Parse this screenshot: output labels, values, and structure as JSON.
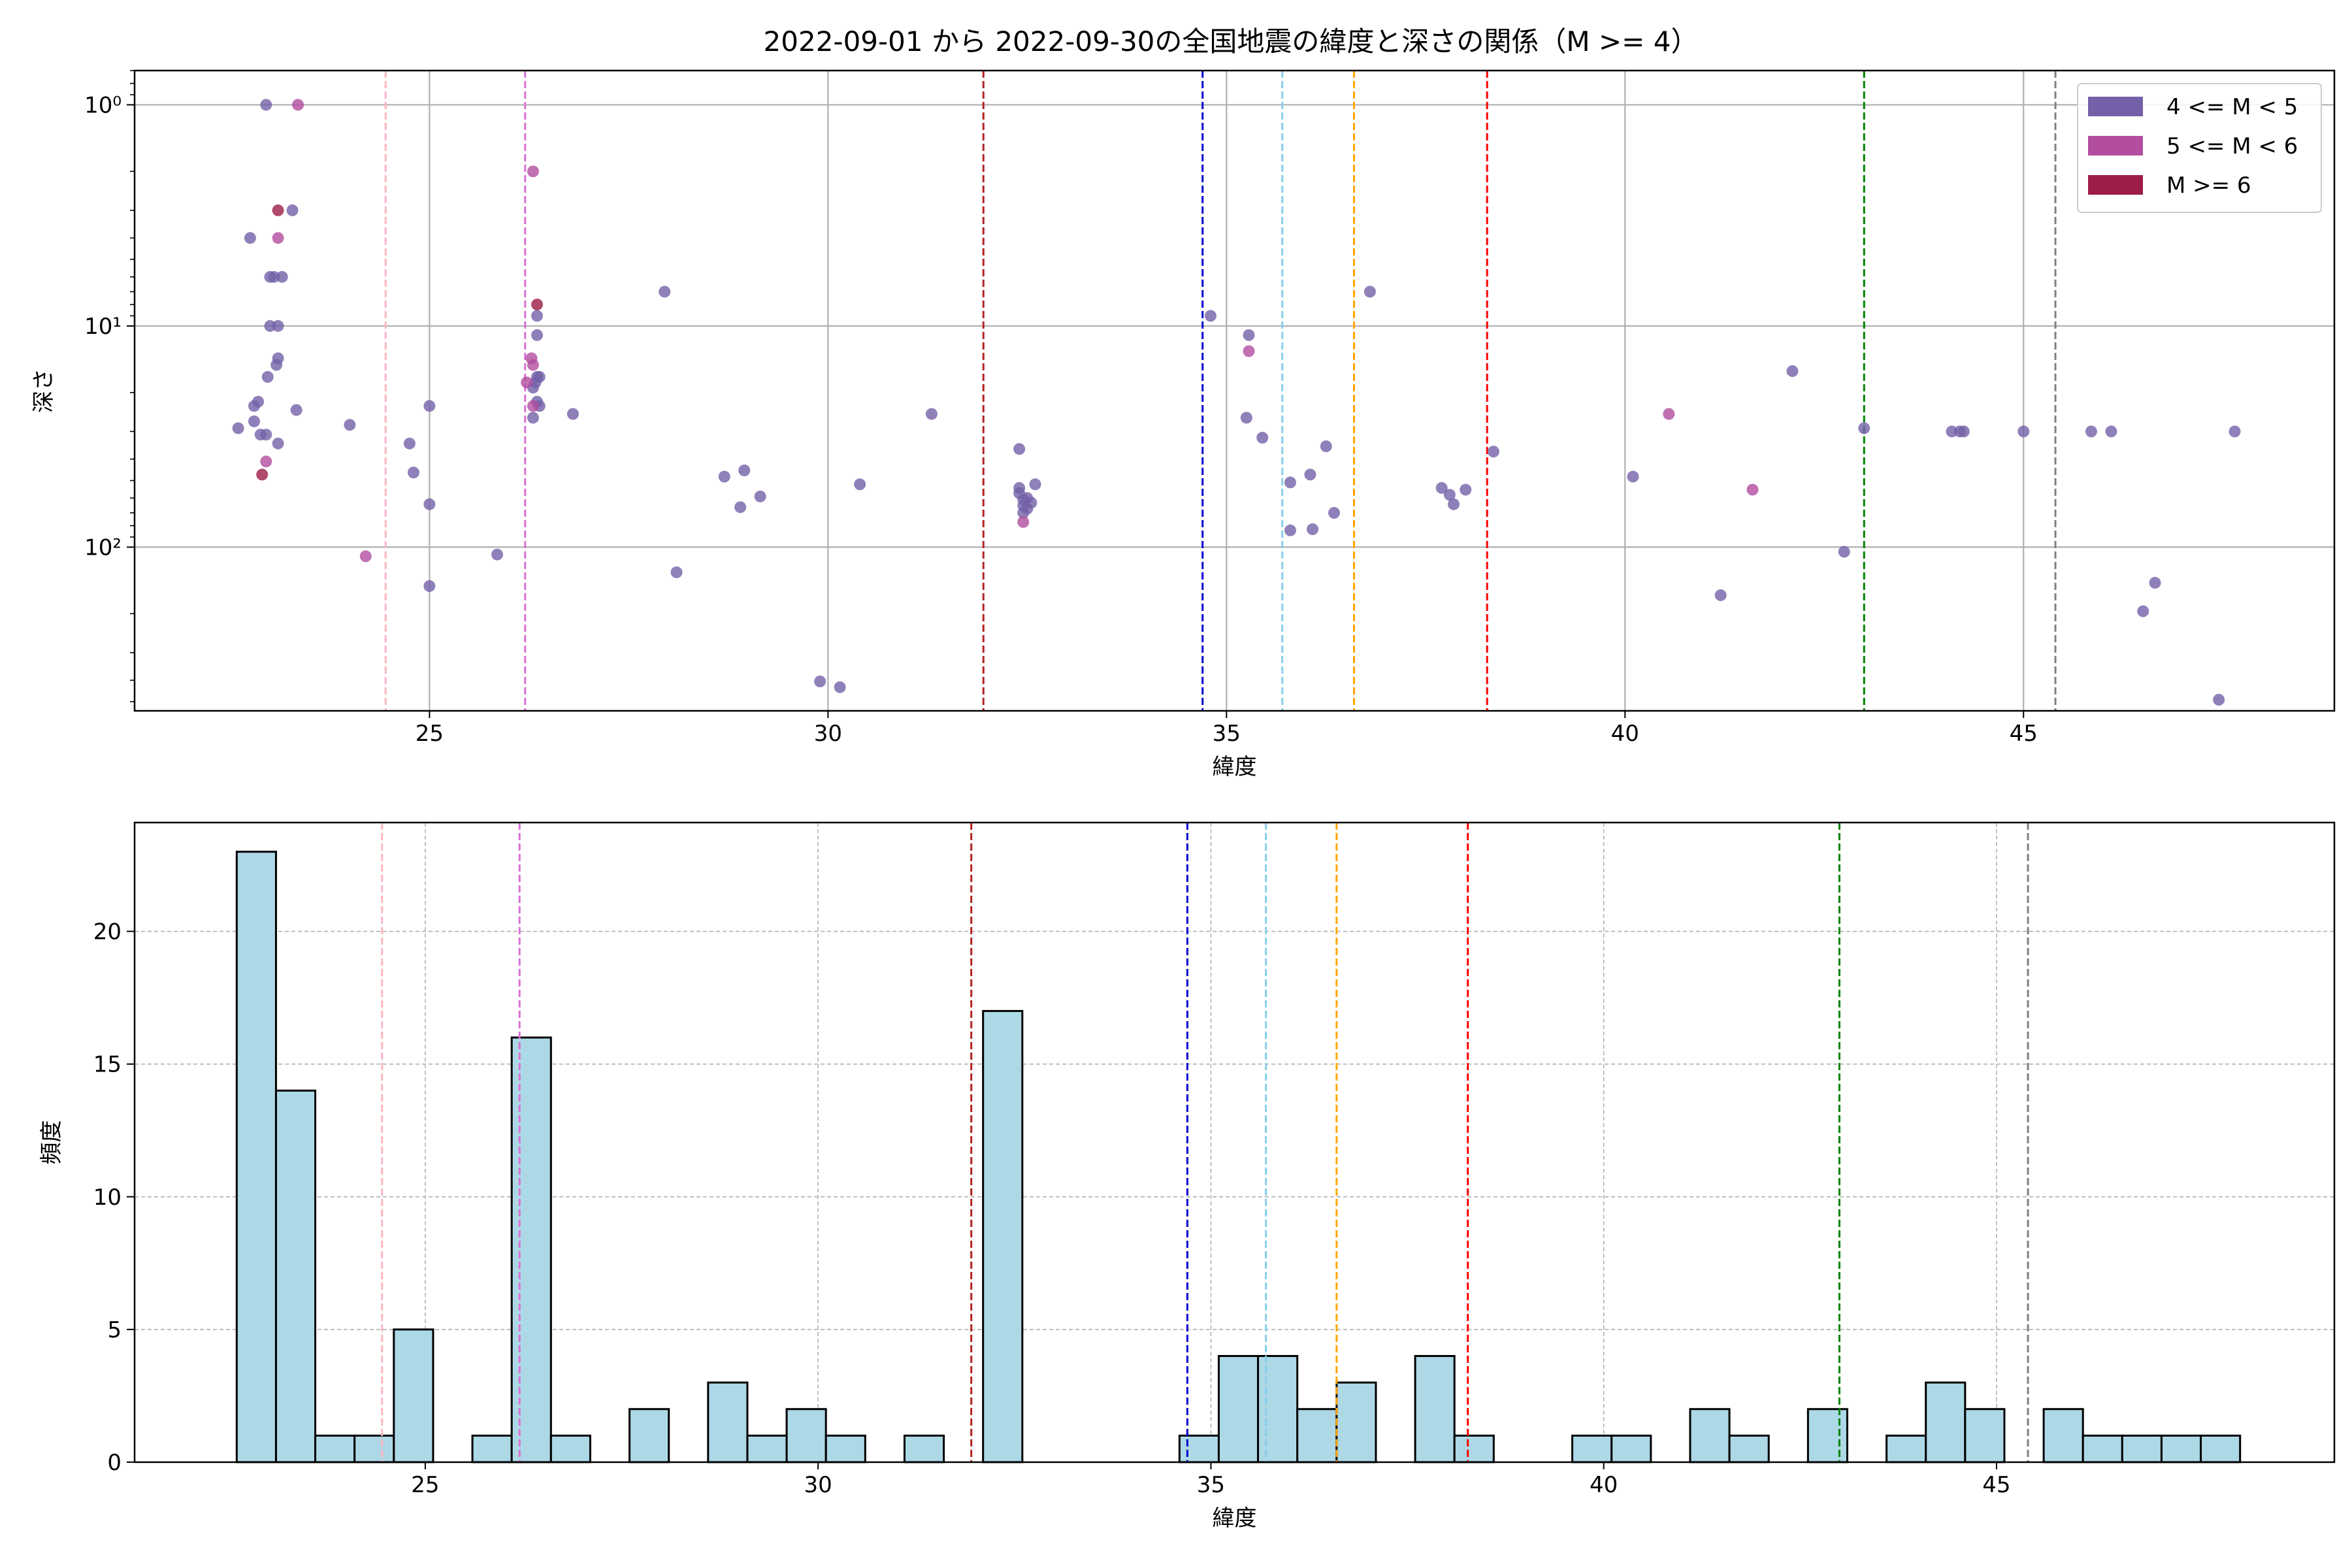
{
  "chart_data": [
    {
      "type": "scatter",
      "title": "2022-09-01 から 2022-09-30の全国地震の緯度と深さの関係（M >= 4）",
      "xlabel": "緯度",
      "ylabel": "深さ",
      "xlim": [
        21.3,
        48.9
      ],
      "ylim": [
        550,
        0.7
      ],
      "yscale": "log",
      "y_inverted": true,
      "grid": true,
      "legend_position": "top-right",
      "x_ticks": [
        25,
        30,
        35,
        40,
        45
      ],
      "y_ticks": [
        1,
        10,
        100
      ],
      "y_tick_labels": [
        "10⁰",
        "10¹",
        "10²"
      ],
      "colors": {
        "m4": "#7360a8",
        "m5": "#b24d9f",
        "m6": "#9c1d45"
      },
      "vlines": [
        {
          "x": 24.45,
          "color": "#ffb6c1"
        },
        {
          "x": 26.2,
          "color": "#da70d6"
        },
        {
          "x": 31.95,
          "color": "#b22222"
        },
        {
          "x": 34.7,
          "color": "#0000cd"
        },
        {
          "x": 35.7,
          "color": "#87ceeb"
        },
        {
          "x": 36.6,
          "color": "#ffa500"
        },
        {
          "x": 38.27,
          "color": "#ff0000"
        },
        {
          "x": 43.0,
          "color": "#008000"
        },
        {
          "x": 45.4,
          "color": "#808080"
        }
      ],
      "series": [
        {
          "name": "4 <= M < 5",
          "color": "#7360a8",
          "points": [
            [
              22.95,
              1
            ],
            [
              23.28,
              3
            ],
            [
              22.75,
              4
            ],
            [
              23.05,
              6
            ],
            [
              23.0,
              6
            ],
            [
              23.15,
              6
            ],
            [
              23.0,
              10
            ],
            [
              23.1,
              10
            ],
            [
              23.1,
              14
            ],
            [
              23.08,
              15
            ],
            [
              22.97,
              17
            ],
            [
              23.33,
              24
            ],
            [
              22.8,
              23
            ],
            [
              22.85,
              22
            ],
            [
              22.8,
              27
            ],
            [
              22.6,
              29
            ],
            [
              22.88,
              31
            ],
            [
              22.95,
              31
            ],
            [
              23.1,
              34
            ],
            [
              24.0,
              28
            ],
            [
              24.75,
              34
            ],
            [
              24.8,
              46
            ],
            [
              25.0,
              23
            ],
            [
              25.0,
              64
            ],
            [
              25.0,
              150
            ],
            [
              25.85,
              108
            ],
            [
              26.35,
              9
            ],
            [
              26.35,
              11
            ],
            [
              26.35,
              17
            ],
            [
              26.38,
              17
            ],
            [
              26.33,
              18
            ],
            [
              26.3,
              19
            ],
            [
              26.35,
              22
            ],
            [
              26.38,
              23
            ],
            [
              26.3,
              26
            ],
            [
              26.8,
              25
            ],
            [
              27.95,
              7
            ],
            [
              28.1,
              130
            ],
            [
              28.7,
              48
            ],
            [
              28.9,
              66
            ],
            [
              28.95,
              45
            ],
            [
              29.15,
              59
            ],
            [
              29.9,
              405
            ],
            [
              30.15,
              430
            ],
            [
              30.4,
              52
            ],
            [
              31.3,
              25
            ],
            [
              32.4,
              36
            ],
            [
              32.4,
              54
            ],
            [
              32.4,
              57
            ],
            [
              32.45,
              61
            ],
            [
              32.5,
              60
            ],
            [
              32.45,
              65
            ],
            [
              32.55,
              63
            ],
            [
              32.5,
              67
            ],
            [
              32.45,
              70
            ],
            [
              32.6,
              52
            ],
            [
              34.8,
              9
            ],
            [
              35.28,
              11
            ],
            [
              35.25,
              26
            ],
            [
              35.45,
              32
            ],
            [
              35.8,
              84
            ],
            [
              35.8,
              51
            ],
            [
              36.05,
              47
            ],
            [
              36.08,
              83
            ],
            [
              36.25,
              35
            ],
            [
              36.35,
              70
            ],
            [
              36.8,
              7
            ],
            [
              37.7,
              54
            ],
            [
              37.8,
              58
            ],
            [
              37.85,
              64
            ],
            [
              38.0,
              55
            ],
            [
              38.35,
              37
            ],
            [
              40.1,
              48
            ],
            [
              41.2,
              165
            ],
            [
              42.1,
              16
            ],
            [
              42.75,
              105
            ],
            [
              43.0,
              29
            ],
            [
              44.1,
              30
            ],
            [
              44.2,
              30
            ],
            [
              44.25,
              30
            ],
            [
              45.0,
              30
            ],
            [
              45.85,
              30
            ],
            [
              46.1,
              30
            ],
            [
              46.5,
              195
            ],
            [
              46.65,
              145
            ],
            [
              47.45,
              490
            ],
            [
              47.65,
              30
            ]
          ]
        },
        {
          "name": "5 <= M < 6",
          "color": "#b24d9f",
          "points": [
            [
              23.35,
              1
            ],
            [
              23.1,
              4
            ],
            [
              22.95,
              41
            ],
            [
              24.2,
              110
            ],
            [
              26.3,
              2
            ],
            [
              26.22,
              18
            ],
            [
              26.28,
              14
            ],
            [
              26.3,
              15
            ],
            [
              26.3,
              23
            ],
            [
              32.45,
              77
            ],
            [
              35.28,
              13
            ],
            [
              40.55,
              25
            ],
            [
              41.6,
              55
            ]
          ]
        },
        {
          "name": "M >= 6",
          "color": "#9c1d45",
          "points": [
            [
              23.1,
              3
            ],
            [
              22.9,
              47
            ],
            [
              26.35,
              8
            ]
          ]
        }
      ]
    },
    {
      "type": "bar",
      "xlabel": "緯度",
      "ylabel": "頻度",
      "xlim": [
        21.3,
        49.3
      ],
      "ylim": [
        0,
        24.1
      ],
      "grid": true,
      "x_ticks": [
        25,
        30,
        35,
        40,
        45
      ],
      "y_ticks": [
        0,
        5,
        10,
        15,
        20
      ],
      "bar_color": "#add8e6",
      "bin_start": 22.6,
      "bin_width": 0.5,
      "values": [
        23,
        14,
        1,
        1,
        5,
        0,
        1,
        16,
        1,
        0,
        2,
        0,
        3,
        1,
        2,
        1,
        0,
        1,
        0,
        17,
        0,
        0,
        0,
        0,
        1,
        4,
        4,
        2,
        3,
        0,
        4,
        1,
        0,
        0,
        1,
        1,
        0,
        2,
        1,
        0,
        2,
        0,
        1,
        3,
        2,
        0,
        2,
        1,
        1,
        1,
        1
      ],
      "vlines": [
        {
          "x": 24.45,
          "color": "#ffb6c1"
        },
        {
          "x": 26.2,
          "color": "#da70d6"
        },
        {
          "x": 31.95,
          "color": "#b22222"
        },
        {
          "x": 34.7,
          "color": "#0000cd"
        },
        {
          "x": 35.7,
          "color": "#87ceeb"
        },
        {
          "x": 36.6,
          "color": "#ffa500"
        },
        {
          "x": 38.27,
          "color": "#ff0000"
        },
        {
          "x": 43.0,
          "color": "#008000"
        },
        {
          "x": 45.4,
          "color": "#808080"
        }
      ]
    }
  ]
}
